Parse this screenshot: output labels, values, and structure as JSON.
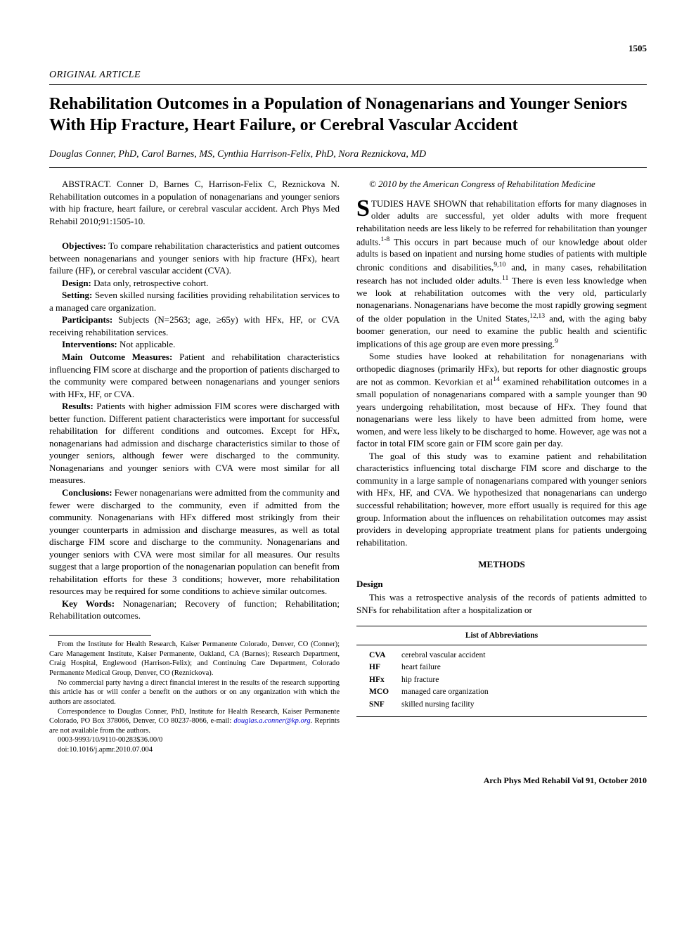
{
  "page_number": "1505",
  "article_type": "ORIGINAL ARTICLE",
  "title": "Rehabilitation Outcomes in a Population of Nonagenarians and Younger Seniors With Hip Fracture, Heart Failure, or Cerebral Vascular Accident",
  "authors": "Douglas Conner, PhD, Carol Barnes, MS, Cynthia Harrison-Felix, PhD, Nora Reznickova, MD",
  "abstract_citation": "ABSTRACT. Conner D, Barnes C, Harrison-Felix C, Reznickova N. Rehabilitation outcomes in a population of nonagenarians and younger seniors with hip fracture, heart failure, or cerebral vascular accident. Arch Phys Med Rehabil 2010;91:1505-10.",
  "abstract": {
    "objectives": {
      "label": "Objectives:",
      "text": " To compare rehabilitation characteristics and patient outcomes between nonagenarians and younger seniors with hip fracture (HFx), heart failure (HF), or cerebral vascular accident (CVA)."
    },
    "design": {
      "label": "Design:",
      "text": " Data only, retrospective cohort."
    },
    "setting": {
      "label": "Setting:",
      "text": " Seven skilled nursing facilities providing rehabilitation services to a managed care organization."
    },
    "participants": {
      "label": "Participants:",
      "text": " Subjects (N=2563; age, ≥65y) with HFx, HF, or CVA receiving rehabilitation services."
    },
    "interventions": {
      "label": "Interventions:",
      "text": " Not applicable."
    },
    "main_outcome": {
      "label": "Main Outcome Measures:",
      "text": " Patient and rehabilitation characteristics influencing FIM score at discharge and the proportion of patients discharged to the community were compared between nonagenarians and younger seniors with HFx, HF, or CVA."
    },
    "results": {
      "label": "Results:",
      "text": " Patients with higher admission FIM scores were discharged with better function. Different patient characteristics were important for successful rehabilitation for different conditions and outcomes. Except for HFx, nonagenarians had admission and discharge characteristics similar to those of younger seniors, although fewer were discharged to the community. Nonagenarians and younger seniors with CVA were most similar for all measures."
    },
    "conclusions": {
      "label": "Conclusions:",
      "text": " Fewer nonagenarians were admitted from the community and fewer were discharged to the community, even if admitted from the community. Nonagenarians with HFx differed most strikingly from their younger counterparts in admission and discharge measures, as well as total discharge FIM score and discharge to the community. Nonagenarians and younger seniors with CVA were most similar for all measures. Our results suggest that a large proportion of the nonagenarian population can benefit from rehabilitation efforts for these 3 conditions; however, more rehabilitation resources may be required for some conditions to achieve similar outcomes."
    },
    "keywords": {
      "label": "Key Words:",
      "text": " Nonagenarian; Recovery of function; Rehabilitation; Rehabilitation outcomes."
    }
  },
  "footnotes": {
    "affiliation": "From the Institute for Health Research, Kaiser Permanente Colorado, Denver, CO (Conner); Care Management Institute, Kaiser Permanente, Oakland, CA (Barnes); Research Department, Craig Hospital, Englewood (Harrison-Felix); and Continuing Care Department, Colorado Permanente Medical Group, Denver, CO (Reznickova).",
    "disclosure": "No commercial party having a direct financial interest in the results of the research supporting this article has or will confer a benefit on the authors or on any organization with which the authors are associated.",
    "correspondence_pre": "Correspondence to Douglas Conner, PhD, Institute for Health Research, Kaiser Permanente Colorado, PO Box 378066, Denver, CO 80237-8066, e-mail: ",
    "correspondence_email": "douglas.a.conner@kp.org",
    "correspondence_post": ". Reprints are not available from the authors.",
    "issn": "0003-9993/10/9110-00283$36.00/0",
    "doi": "doi:10.1016/j.apmr.2010.07.004"
  },
  "copyright": "© 2010 by the American Congress of Rehabilitation Medicine",
  "body": {
    "intro_first": "TUDIES HAVE SHOWN that rehabilitation efforts for many diagnoses in older adults are successful, yet older adults with more frequent rehabilitation needs are less likely to be referred for rehabilitation than younger adults.",
    "intro_cont": " This occurs in part because much of our knowledge about older adults is based on inpatient and nursing home studies of patients with multiple chronic conditions and disabilities,",
    "intro_cont2": " and, in many cases, rehabilitation research has not included older adults.",
    "intro_cont3": " There is even less knowledge when we look at rehabilitation outcomes with the very old, particularly nonagenarians. Nonagenarians have become the most rapidly growing segment of the older population in the United States,",
    "intro_cont4": " and, with the aging baby boomer generation, our need to examine the public health and scientific implications of this age group are even more pressing.",
    "para2_a": "Some studies have looked at rehabilitation for nonagenarians with orthopedic diagnoses (primarily HFx), but reports for other diagnostic groups are not as common. Kevorkian et al",
    "para2_b": " examined rehabilitation outcomes in a small population of nonagenarians compared with a sample younger than 90 years undergoing rehabilitation, most because of HFx. They found that nonagenarians were less likely to have been admitted from home, were women, and were less likely to be discharged to home. However, age was not a factor in total FIM score gain or FIM score gain per day.",
    "para3": "The goal of this study was to examine patient and rehabilitation characteristics influencing total discharge FIM score and discharge to the community in a large sample of nonagenarians compared with younger seniors with HFx, HF, and CVA. We hypothesized that nonagenarians can undergo successful rehabilitation; however, more effort usually is required for this age group. Information about the influences on rehabilitation outcomes may assist providers in developing appropriate treatment plans for patients undergoing rehabilitation.",
    "methods_heading": "METHODS",
    "design_heading": "Design",
    "design_text": "This was a retrospective analysis of the records of patients admitted to SNFs for rehabilitation after a hospitalization or"
  },
  "superscripts": {
    "s1": "1-8",
    "s2": "9,10",
    "s3": "11",
    "s4": "12,13",
    "s5": "9",
    "s6": "14"
  },
  "abbreviations": {
    "title": "List of Abbreviations",
    "rows": [
      {
        "abbr": "CVA",
        "def": "cerebral vascular accident"
      },
      {
        "abbr": "HF",
        "def": "heart failure"
      },
      {
        "abbr": "HFx",
        "def": "hip fracture"
      },
      {
        "abbr": "MCO",
        "def": "managed care organization"
      },
      {
        "abbr": "SNF",
        "def": "skilled nursing facility"
      }
    ]
  },
  "journal_footer": "Arch Phys Med Rehabil Vol 91, October 2010"
}
